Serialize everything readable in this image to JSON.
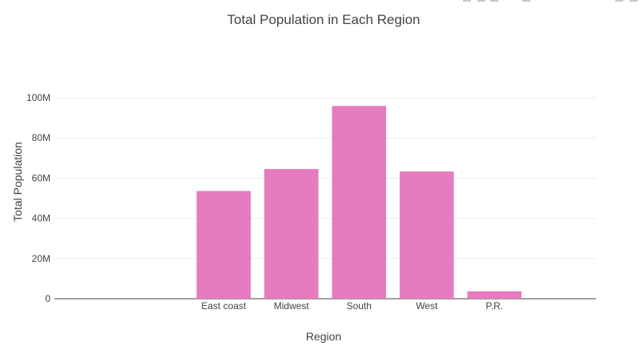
{
  "chart_data": {
    "type": "bar",
    "title": "Total Population in Each Region",
    "xlabel": "Region",
    "ylabel": "Total Population",
    "categories": [
      "East coast",
      "Midwest",
      "South",
      "West",
      "P.R."
    ],
    "values": [
      53600000,
      64500000,
      95900000,
      63300000,
      3700000
    ],
    "ylim": [
      0,
      100000000
    ],
    "yticks": [
      0,
      20000000,
      40000000,
      60000000,
      80000000,
      100000000
    ],
    "ytick_labels": [
      "0",
      "20M",
      "40M",
      "60M",
      "80M",
      "100M"
    ],
    "bar_color": "#e77bbf",
    "grid": true,
    "legend": "none"
  }
}
